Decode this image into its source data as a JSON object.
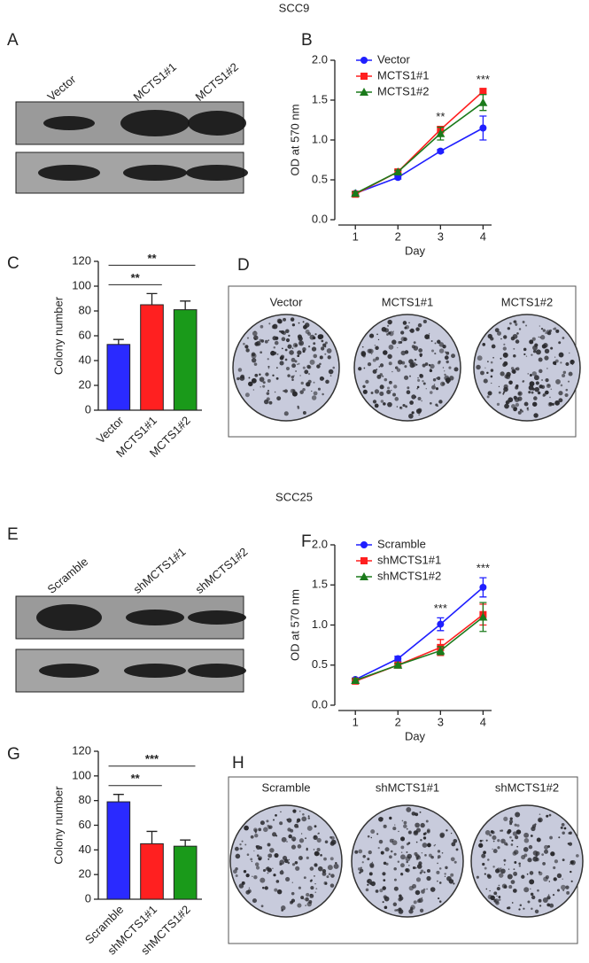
{
  "sections": [
    "SCC9",
    "SCC25"
  ],
  "blots": [
    {
      "panel": "A",
      "lanes": [
        "Vector",
        "MCTS1#1",
        "MCTS1#2"
      ]
    },
    {
      "panel": "E",
      "lanes": [
        "Scramble",
        "shMCTS1#1",
        "shMCTS1#2"
      ]
    }
  ],
  "dishes": [
    {
      "panel": "D",
      "labels": [
        "Vector",
        "MCTS1#1",
        "MCTS1#2"
      ]
    },
    {
      "panel": "H",
      "labels": [
        "Scramble",
        "shMCTS1#1",
        "shMCTS1#2"
      ]
    }
  ],
  "chart_data": [
    {
      "type": "line",
      "panel": "B",
      "xlabel": "Day",
      "ylabel": "OD at 570 nm",
      "x": [
        1,
        2,
        3,
        4
      ],
      "xlim": [
        0.6,
        4.2
      ],
      "xticks": [
        1,
        2,
        3,
        4
      ],
      "ylim": [
        0,
        2
      ],
      "yticks": [
        {
          "value": 0,
          "label": "0.0"
        },
        0.5,
        {
          "value": 1,
          "label": "1.0"
        },
        1.5,
        {
          "value": 2,
          "label": "2.0"
        }
      ],
      "series": [
        {
          "name": "Vector",
          "color": "#1f1fff",
          "marker": "circle",
          "values": [
            0.33,
            0.53,
            0.86,
            1.15
          ],
          "errors": [
            0.02,
            0.02,
            0.02,
            0.15
          ]
        },
        {
          "name": "MCTS1#1",
          "color": "#ff1f1f",
          "marker": "square",
          "values": [
            0.32,
            0.6,
            1.13,
            1.61
          ],
          "errors": [
            0.02,
            0.02,
            0.04,
            0.03
          ]
        },
        {
          "name": "MCTS1#2",
          "color": "#1b7a1b",
          "marker": "triangle",
          "values": [
            0.33,
            0.6,
            1.08,
            1.47
          ],
          "errors": [
            0.02,
            0.02,
            0.08,
            0.1
          ]
        }
      ],
      "annotations": [
        {
          "x": 3,
          "text": "**"
        },
        {
          "x": 4,
          "text": "***"
        }
      ]
    },
    {
      "type": "bar",
      "panel": "C",
      "ylabel": "Colony number",
      "categories": [
        "Vector",
        "MCTS1#1",
        "MCTS1#2"
      ],
      "values": [
        53,
        85,
        81
      ],
      "errors": [
        4,
        9,
        7
      ],
      "colors": [
        "#2a2aff",
        "#ff2020",
        "#1a9a1a"
      ],
      "ylim": [
        0,
        120
      ],
      "yticks": [
        0,
        20,
        40,
        60,
        80,
        100,
        120
      ],
      "comparisons": [
        {
          "from": 0,
          "to": 1,
          "text": "**"
        },
        {
          "from": 0,
          "to": 2,
          "text": "**"
        }
      ]
    },
    {
      "type": "line",
      "panel": "F",
      "xlabel": "Day",
      "ylabel": "OD at 570 nm",
      "x": [
        1,
        2,
        3,
        4
      ],
      "xlim": [
        0.6,
        4.2
      ],
      "xticks": [
        1,
        2,
        3,
        4
      ],
      "ylim": [
        0,
        2
      ],
      "yticks": [
        {
          "value": 0,
          "label": "0.0"
        },
        0.5,
        {
          "value": 1,
          "label": "1.0"
        },
        1.5,
        {
          "value": 2,
          "label": "2.0"
        }
      ],
      "series": [
        {
          "name": "Scramble",
          "color": "#1f1fff",
          "marker": "circle",
          "values": [
            0.32,
            0.58,
            1.01,
            1.47
          ],
          "errors": [
            0.02,
            0.03,
            0.08,
            0.12
          ]
        },
        {
          "name": "shMCTS1#1",
          "color": "#ff1f1f",
          "marker": "square",
          "values": [
            0.3,
            0.5,
            0.72,
            1.13
          ],
          "errors": [
            0.02,
            0.02,
            0.1,
            0.13
          ]
        },
        {
          "name": "shMCTS1#2",
          "color": "#1b7a1b",
          "marker": "triangle",
          "values": [
            0.31,
            0.5,
            0.68,
            1.1
          ],
          "errors": [
            0.02,
            0.02,
            0.05,
            0.18
          ]
        }
      ],
      "annotations": [
        {
          "x": 3,
          "text": "***"
        },
        {
          "x": 4,
          "text": "***"
        }
      ]
    },
    {
      "type": "bar",
      "panel": "G",
      "ylabel": "Colony number",
      "categories": [
        "Scramble",
        "shMCTS1#1",
        "shMCTS1#2"
      ],
      "values": [
        79,
        45,
        43
      ],
      "errors": [
        6,
        10,
        5
      ],
      "colors": [
        "#2a2aff",
        "#ff2020",
        "#1a9a1a"
      ],
      "ylim": [
        0,
        120
      ],
      "yticks": [
        0,
        20,
        40,
        60,
        80,
        100,
        120
      ],
      "comparisons": [
        {
          "from": 0,
          "to": 1,
          "text": "**"
        },
        {
          "from": 0,
          "to": 2,
          "text": "***"
        }
      ]
    }
  ]
}
